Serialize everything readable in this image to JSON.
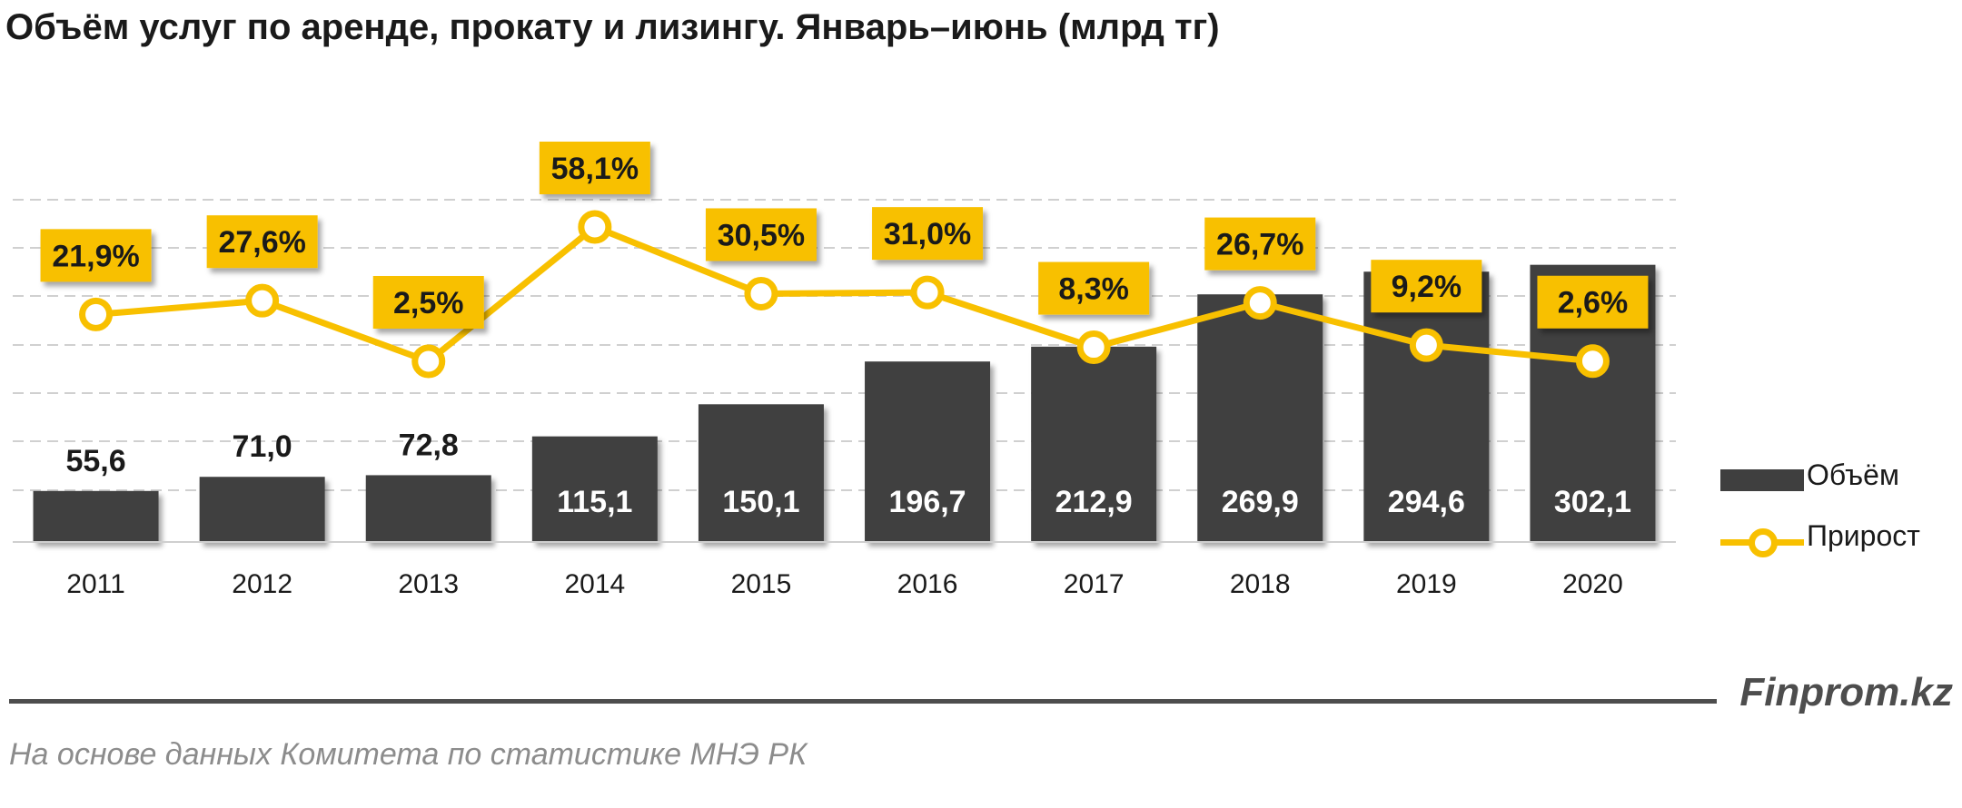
{
  "title": "Объём услуг по аренде, прокату и лизингу. Январь–июнь (млрд тг)",
  "chart_data": {
    "type": "bar",
    "categories": [
      "2011",
      "2012",
      "2013",
      "2014",
      "2015",
      "2016",
      "2017",
      "2018",
      "2019",
      "2020"
    ],
    "series": [
      {
        "name": "Объём",
        "type": "bar",
        "values": [
          55.6,
          71.0,
          72.8,
          115.1,
          150.1,
          196.7,
          212.9,
          269.9,
          294.6,
          302.1
        ],
        "labels": [
          "55,6",
          "71,0",
          "72,8",
          "115,1",
          "150,1",
          "196,7",
          "212,9",
          "269,9",
          "294,6",
          "302,1"
        ],
        "color": "#3f3f3f"
      },
      {
        "name": "Прирост",
        "type": "line",
        "values": [
          21.9,
          27.6,
          2.5,
          58.1,
          30.5,
          31.0,
          8.3,
          26.7,
          9.2,
          2.6
        ],
        "labels": [
          "21,9%",
          "27,6%",
          "2,5%",
          "58,1%",
          "30,5%",
          "31,0%",
          "8,3%",
          "26,7%",
          "9,2%",
          "2,6%"
        ],
        "color": "#f8c000"
      }
    ],
    "ylim": [
      0,
      375
    ],
    "grid": true,
    "legend": "right"
  },
  "legend": {
    "bar_label": "Объём",
    "line_label": "Прирост"
  },
  "brand": "Finprom.kz",
  "source": "На основе данных  Комитета по статистике МНЭ РК"
}
